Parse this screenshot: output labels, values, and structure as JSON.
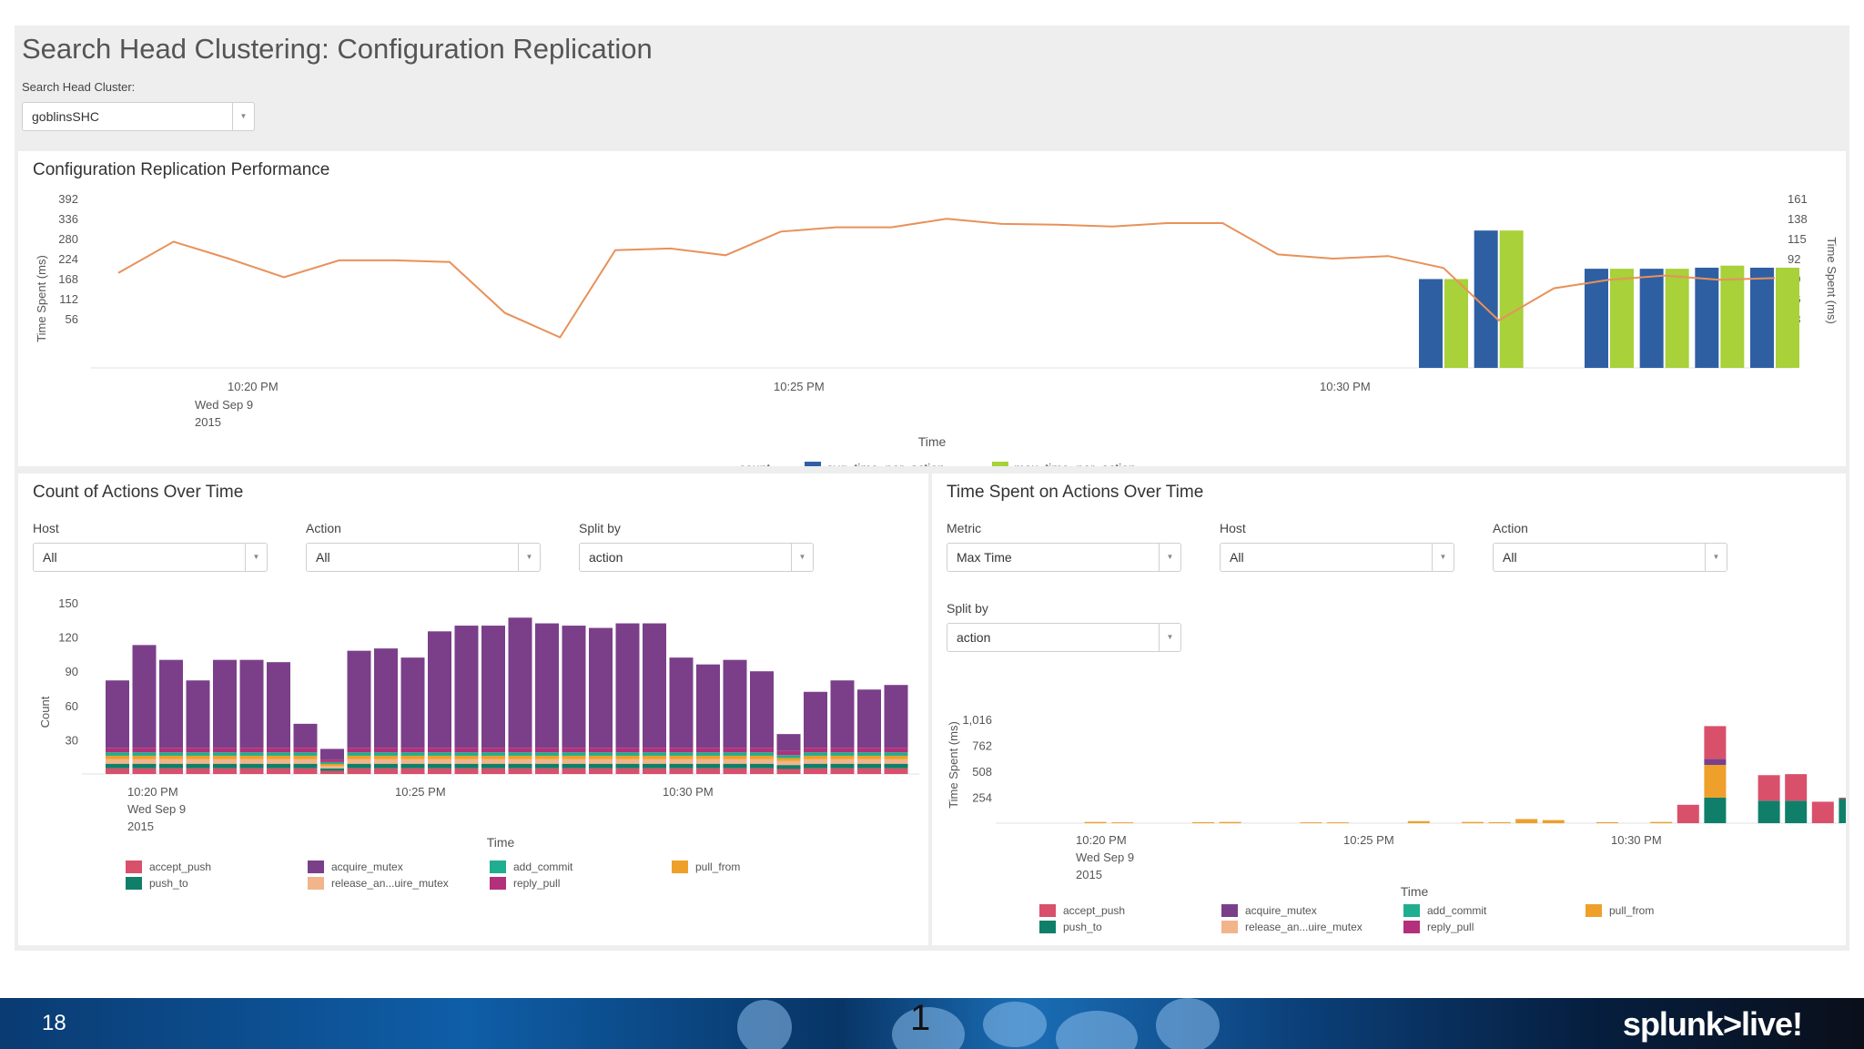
{
  "dashboard": {
    "title": "Search Head Clustering: Configuration Replication",
    "cluster_label": "Search Head Cluster:",
    "cluster_value": "goblinsSHC"
  },
  "perf": {
    "title": "Configuration Replication Performance",
    "chart_data": {
      "type": "line",
      "title": "Configuration Replication Performance",
      "xlabel": "Time",
      "ylabel_left": "Time Spent (ms)",
      "ylabel_right": "Time Spent (ms)",
      "left_ticks": [
        "392",
        "336",
        "280",
        "224",
        "168",
        "112",
        "56"
      ],
      "right_ticks": [
        "161",
        "138",
        "115",
        "92",
        "69",
        "46",
        "23"
      ],
      "x_ticks": [
        "10:20 PM",
        "10:25 PM",
        "10:30 PM"
      ],
      "x_tick_sub": [
        "Wed Sep 9",
        "2015"
      ],
      "legend": [
        "count",
        "avg_time_per_action",
        "max_time_per_action"
      ],
      "count": [
        224,
        298,
        258,
        214,
        254,
        254,
        250,
        130,
        72,
        278,
        282,
        266,
        322,
        332,
        332,
        352,
        340,
        338,
        334,
        342,
        342,
        268,
        258,
        264,
        236,
        112,
        188,
        208,
        218,
        208,
        212
      ],
      "avg_time_per_action": [
        null,
        null,
        null,
        null,
        null,
        null,
        null,
        null,
        null,
        null,
        null,
        null,
        null,
        null,
        null,
        null,
        null,
        null,
        null,
        null,
        null,
        null,
        null,
        null,
        86,
        133,
        null,
        96,
        96,
        97,
        97
      ],
      "max_time_per_action": [
        null,
        null,
        null,
        null,
        null,
        null,
        null,
        null,
        null,
        null,
        null,
        null,
        null,
        null,
        null,
        null,
        null,
        null,
        null,
        null,
        null,
        null,
        null,
        null,
        86,
        133,
        null,
        96,
        96,
        99,
        97
      ]
    }
  },
  "count_panel": {
    "title": "Count of Actions Over Time",
    "host_label": "Host",
    "host_value": "All",
    "action_label": "Action",
    "action_value": "All",
    "split_label": "Split by",
    "split_value": "action",
    "chart_data": {
      "type": "bar",
      "stacked": true,
      "xlabel": "Time",
      "ylabel": "Count",
      "y_ticks": [
        "150",
        "120",
        "90",
        "60",
        "30"
      ],
      "ylim": [
        0,
        150
      ],
      "x_ticks": [
        "10:20 PM",
        "10:25 PM",
        "10:30 PM"
      ],
      "x_tick_sub": [
        "Wed Sep 9",
        "2015"
      ],
      "legend": [
        "accept_push",
        "acquire_mutex",
        "add_commit",
        "pull_from",
        "push_to",
        "release_an...uire_mutex",
        "reply_pull"
      ],
      "totals": [
        82,
        113,
        100,
        82,
        100,
        100,
        98,
        44,
        22,
        108,
        110,
        102,
        125,
        130,
        130,
        137,
        132,
        130,
        128,
        132,
        132,
        102,
        96,
        100,
        90,
        35,
        72,
        82,
        74,
        78
      ],
      "base_layers": [
        "accept_push",
        "push_to",
        "release_an...uire_mutex",
        "pull_from",
        "add_commit",
        "reply_pull"
      ]
    }
  },
  "time_panel": {
    "title": "Time Spent on Actions Over Time",
    "metric_label": "Metric",
    "metric_value": "Max Time",
    "host_label": "Host",
    "host_value": "All",
    "action_label": "Action",
    "action_value": "All",
    "split_label": "Split by",
    "split_value": "action",
    "chart_data": {
      "type": "bar",
      "stacked": true,
      "xlabel": "Time",
      "ylabel": "Time Spent (ms)",
      "y_ticks": [
        "1,016",
        "762",
        "508",
        "254"
      ],
      "ylim": [
        0,
        1016
      ],
      "x_ticks": [
        "10:20 PM",
        "10:25 PM",
        "10:30 PM"
      ],
      "x_tick_sub": [
        "Wed Sep 9",
        "2015"
      ],
      "legend": [
        "accept_push",
        "acquire_mutex",
        "add_commit",
        "pull_from",
        "push_to",
        "release_an...uire_mutex",
        "reply_pull"
      ],
      "bars": [
        {
          "i": 1,
          "pull_from": 12
        },
        {
          "i": 2,
          "pull_from": 8
        },
        {
          "i": 5,
          "pull_from": 10
        },
        {
          "i": 6,
          "pull_from": 12
        },
        {
          "i": 9,
          "pull_from": 8
        },
        {
          "i": 10,
          "pull_from": 8
        },
        {
          "i": 13,
          "pull_from": 20
        },
        {
          "i": 15,
          "pull_from": 12
        },
        {
          "i": 16,
          "pull_from": 10
        },
        {
          "i": 17,
          "pull_from": 40
        },
        {
          "i": 18,
          "pull_from": 30
        },
        {
          "i": 20,
          "pull_from": 10
        },
        {
          "i": 22,
          "pull_from": 12
        },
        {
          "i": 23,
          "accept_push": 180
        },
        {
          "i": 24,
          "push_to": 250,
          "pull_from": 320,
          "acquire_mutex": 60,
          "accept_push": 320
        },
        {
          "i": 26,
          "push_to": 220,
          "accept_push": 250
        },
        {
          "i": 27,
          "push_to": 220,
          "accept_push": 260
        },
        {
          "i": 28,
          "accept_push": 210
        },
        {
          "i": 29,
          "push_to": 240,
          "accept_push": 10
        }
      ]
    }
  },
  "footer": {
    "page_number": "18",
    "center_text": "1",
    "logo": "splunk>live!"
  },
  "colors": {
    "count_line": "#e8915a",
    "avg_bar": "#2f5fa3",
    "max_bar": "#a8d13a",
    "accept_push": "#d9506b",
    "acquire_mutex": "#7b3f8a",
    "add_commit": "#1fae8f",
    "pull_from": "#eea02a",
    "push_to": "#0f7f6a",
    "release": "#f2b48a",
    "reply_pull": "#b3307a"
  }
}
